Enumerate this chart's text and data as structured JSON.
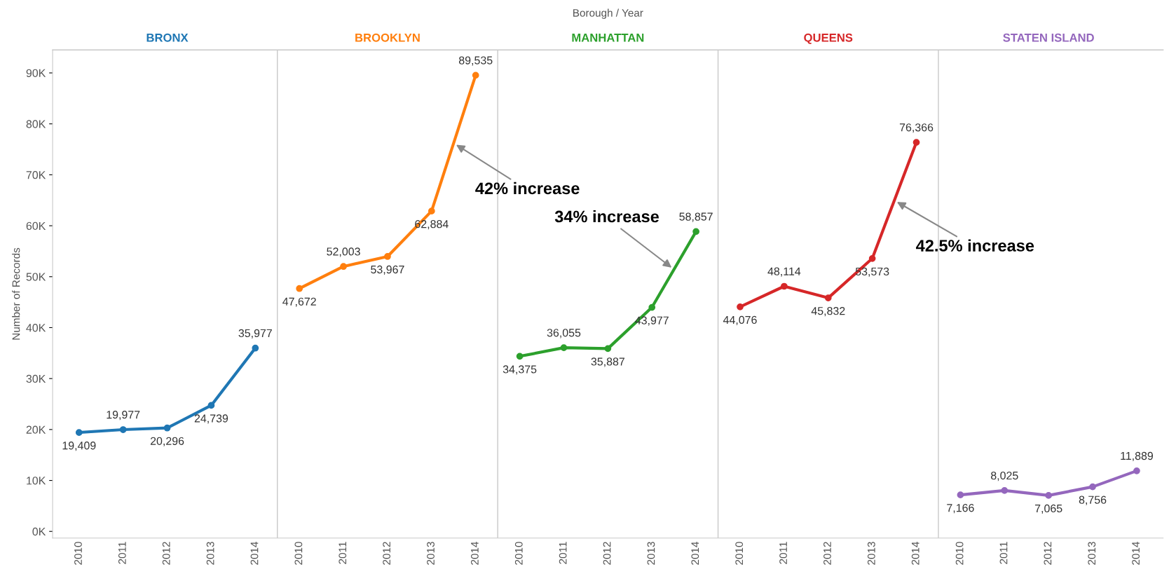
{
  "chart_data": {
    "type": "line",
    "ylabel": "Number of Records",
    "annotations": [
      "Borough / Year",
      "42% increase",
      "34% increase",
      "42.5% increase"
    ],
    "categories": [
      "2010",
      "2011",
      "2012",
      "2013",
      "2014",
      "2010",
      "2011",
      "2012",
      "2013",
      "2014",
      "2010",
      "2011",
      "2012",
      "2013",
      "2014",
      "2010",
      "2011",
      "2012",
      "2013",
      "2014",
      "2010",
      "2011",
      "2012",
      "2013",
      "2014"
    ],
    "ylim": [
      -1300,
      94500
    ],
    "yticks": [
      {
        "value": 0,
        "label": "0K"
      },
      {
        "value": 10000,
        "label": "10K"
      },
      {
        "value": 20000,
        "label": "20K"
      },
      {
        "value": 30000,
        "label": "30K"
      },
      {
        "value": 40000,
        "label": "40K"
      },
      {
        "value": 50000,
        "label": "50K"
      },
      {
        "value": 60000,
        "label": "60K"
      },
      {
        "value": 70000,
        "label": "70K"
      },
      {
        "value": 80000,
        "label": "80K"
      },
      {
        "value": 90000,
        "label": "90K"
      }
    ],
    "series": [
      {
        "name": "BRONX",
        "color": "#1f77b4",
        "values": [
          19409,
          19977,
          20296,
          24739,
          35977,
          null,
          null,
          null,
          null,
          null,
          null,
          null,
          null,
          null,
          null,
          null,
          null,
          null,
          null,
          null,
          null,
          null,
          null,
          null,
          null
        ],
        "value_labels": [
          "19,409",
          "19,977",
          "20,296",
          "24,739",
          "35,977",
          null,
          null,
          null,
          null,
          null,
          null,
          null,
          null,
          null,
          null,
          null,
          null,
          null,
          null,
          null,
          null,
          null,
          null,
          null,
          null
        ]
      },
      {
        "name": "BROOKLYN",
        "color": "#ff7f0e",
        "values": [
          null,
          null,
          null,
          null,
          null,
          47672,
          52003,
          53967,
          62884,
          89535,
          null,
          null,
          null,
          null,
          null,
          null,
          null,
          null,
          null,
          null,
          null,
          null,
          null,
          null,
          null
        ],
        "value_labels": [
          null,
          null,
          null,
          null,
          null,
          "47,672",
          "52,003",
          "53,967",
          "62,884",
          "89,535",
          null,
          null,
          null,
          null,
          null,
          null,
          null,
          null,
          null,
          null,
          null,
          null,
          null,
          null,
          null
        ]
      },
      {
        "name": "MANHATTAN",
        "color": "#2ca02c",
        "values": [
          null,
          null,
          null,
          null,
          null,
          null,
          null,
          null,
          null,
          null,
          34375,
          36055,
          35887,
          43977,
          58857,
          null,
          null,
          null,
          null,
          null,
          null,
          null,
          null,
          null,
          null
        ],
        "value_labels": [
          null,
          null,
          null,
          null,
          null,
          null,
          null,
          null,
          null,
          null,
          "34,375",
          "36,055",
          "35,887",
          "43,977",
          "58,857",
          null,
          null,
          null,
          null,
          null,
          null,
          null,
          null,
          null,
          null
        ]
      },
      {
        "name": "QUEENS",
        "color": "#d62728",
        "values": [
          null,
          null,
          null,
          null,
          null,
          null,
          null,
          null,
          null,
          null,
          null,
          null,
          null,
          null,
          null,
          44076,
          48114,
          45832,
          53573,
          76366,
          null,
          null,
          null,
          null,
          null
        ],
        "value_labels": [
          null,
          null,
          null,
          null,
          null,
          null,
          null,
          null,
          null,
          null,
          null,
          null,
          null,
          null,
          null,
          "44,076",
          "48,114",
          "45,832",
          "53,573",
          "76,366",
          null,
          null,
          null,
          null,
          null
        ]
      },
      {
        "name": "STATEN ISLAND",
        "color": "#9467bd",
        "values": [
          null,
          null,
          null,
          null,
          null,
          null,
          null,
          null,
          null,
          null,
          null,
          null,
          null,
          null,
          null,
          null,
          null,
          null,
          null,
          null,
          7166,
          8025,
          7065,
          8756,
          11889
        ],
        "value_labels": [
          null,
          null,
          null,
          null,
          null,
          null,
          null,
          null,
          null,
          null,
          null,
          null,
          null,
          null,
          null,
          null,
          null,
          null,
          null,
          null,
          "7,166",
          "8,025",
          "7,065",
          "8,756",
          "11,889"
        ]
      }
    ],
    "marker": "circle",
    "line_style": "solid"
  }
}
